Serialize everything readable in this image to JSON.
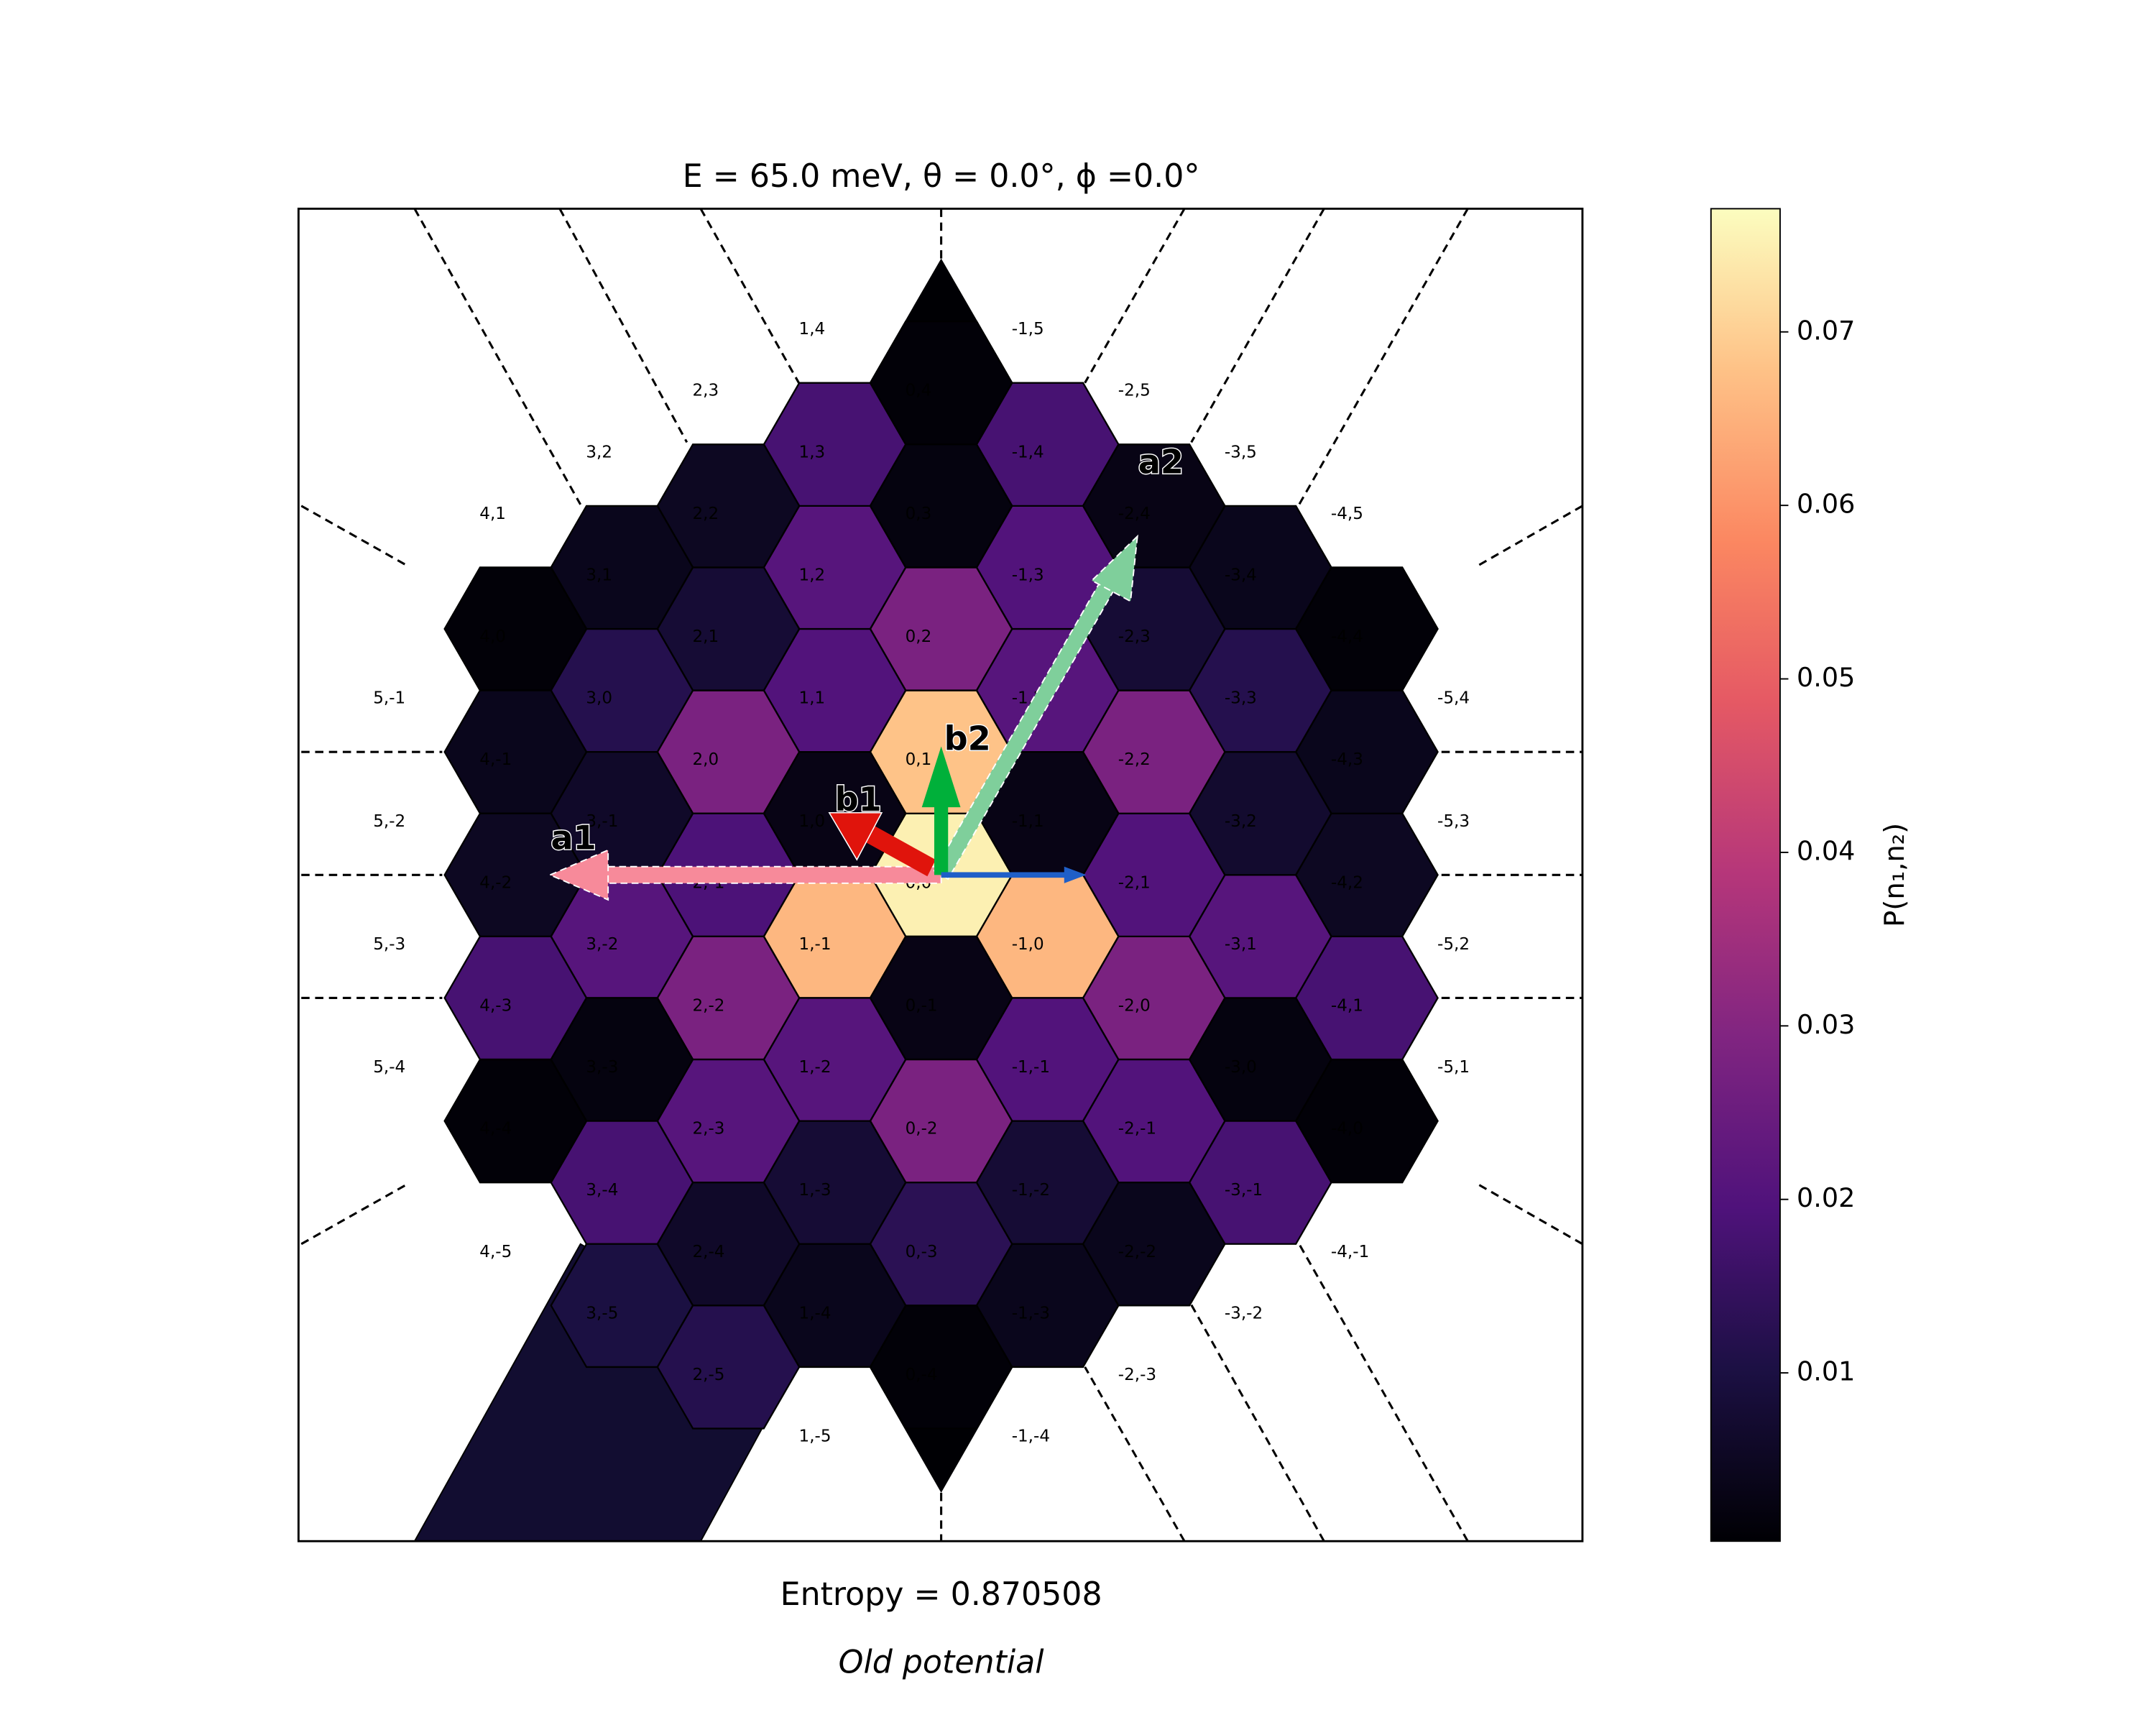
{
  "chart_data": {
    "type": "hexmap",
    "title": "E = 65.0 meV, θ = 0.0°, ϕ =0.0°",
    "subtitle": "Entropy = 0.870508",
    "caption": "Old potential",
    "colorbar_label": "P(n₁,n₂)",
    "colormap": "magma",
    "clim": [
      0.0003,
      0.0771
    ],
    "cticks": [
      0.01,
      0.02,
      0.03,
      0.04,
      0.05,
      0.06,
      0.07
    ],
    "vectors": [
      "a1",
      "a2",
      "b1",
      "b2"
    ],
    "categories": [
      "0,0",
      "0,1",
      "0,2",
      "0,3",
      "0,4",
      "0,-1",
      "0,-2",
      "0,-3",
      "0,-4",
      "1,0",
      "1,1",
      "1,2",
      "1,3",
      "1,4",
      "1,-1",
      "1,-2",
      "1,-3",
      "1,-4",
      "1,-5",
      "-1,0",
      "-1,1",
      "-1,2",
      "-1,3",
      "-1,4",
      "-1,5",
      "-1,-1",
      "-1,-2",
      "-1,-3",
      "-1,-4",
      "2,0",
      "2,1",
      "2,2",
      "2,3",
      "2,-1",
      "2,-2",
      "2,-3",
      "2,-4",
      "2,-5",
      "-2,0",
      "-2,1",
      "-2,2",
      "-2,3",
      "-2,4",
      "-2,5",
      "-2,-1",
      "-2,-2",
      "-2,-3",
      "3,0",
      "3,1",
      "3,2",
      "3,-1",
      "3,-2",
      "3,-3",
      "3,-4",
      "3,-5",
      "-3,0",
      "-3,1",
      "-3,2",
      "-3,3",
      "-3,4",
      "-3,5",
      "-3,-1",
      "-3,-2",
      "4,0",
      "4,1",
      "4,-1",
      "4,-2",
      "4,-3",
      "4,-4",
      "4,-5",
      "-4,0",
      "-4,1",
      "-4,2",
      "-4,3",
      "-4,4",
      "-4,5",
      "-4,-1",
      "5,-1",
      "5,-2",
      "5,-3",
      "5,-4",
      "-5,1",
      "-5,2",
      "-5,3",
      "-5,4"
    ],
    "values": [
      0.075,
      0.068,
      0.028,
      0.002,
      0.001,
      0.003,
      0.028,
      0.013,
      0.001,
      0.003,
      0.02,
      0.021,
      0.018,
      null,
      0.066,
      0.021,
      0.008,
      0.004,
      null,
      0.066,
      0.003,
      0.021,
      0.02,
      0.018,
      null,
      0.02,
      0.008,
      0.004,
      null,
      0.028,
      0.008,
      0.005,
      null,
      0.019,
      0.028,
      0.021,
      0.006,
      0.012,
      0.028,
      0.02,
      0.028,
      0.008,
      0.003,
      null,
      0.02,
      0.004,
      null,
      0.012,
      0.004,
      null,
      0.006,
      0.021,
      0.002,
      0.018,
      0.01,
      0.002,
      0.021,
      0.007,
      0.012,
      0.004,
      null,
      0.018,
      null,
      0.001,
      null,
      0.004,
      0.005,
      0.018,
      0.001,
      null,
      0.001,
      0.018,
      0.005,
      0.004,
      0.001,
      null,
      null,
      null,
      null,
      null,
      null,
      null,
      null,
      null,
      null
    ]
  }
}
